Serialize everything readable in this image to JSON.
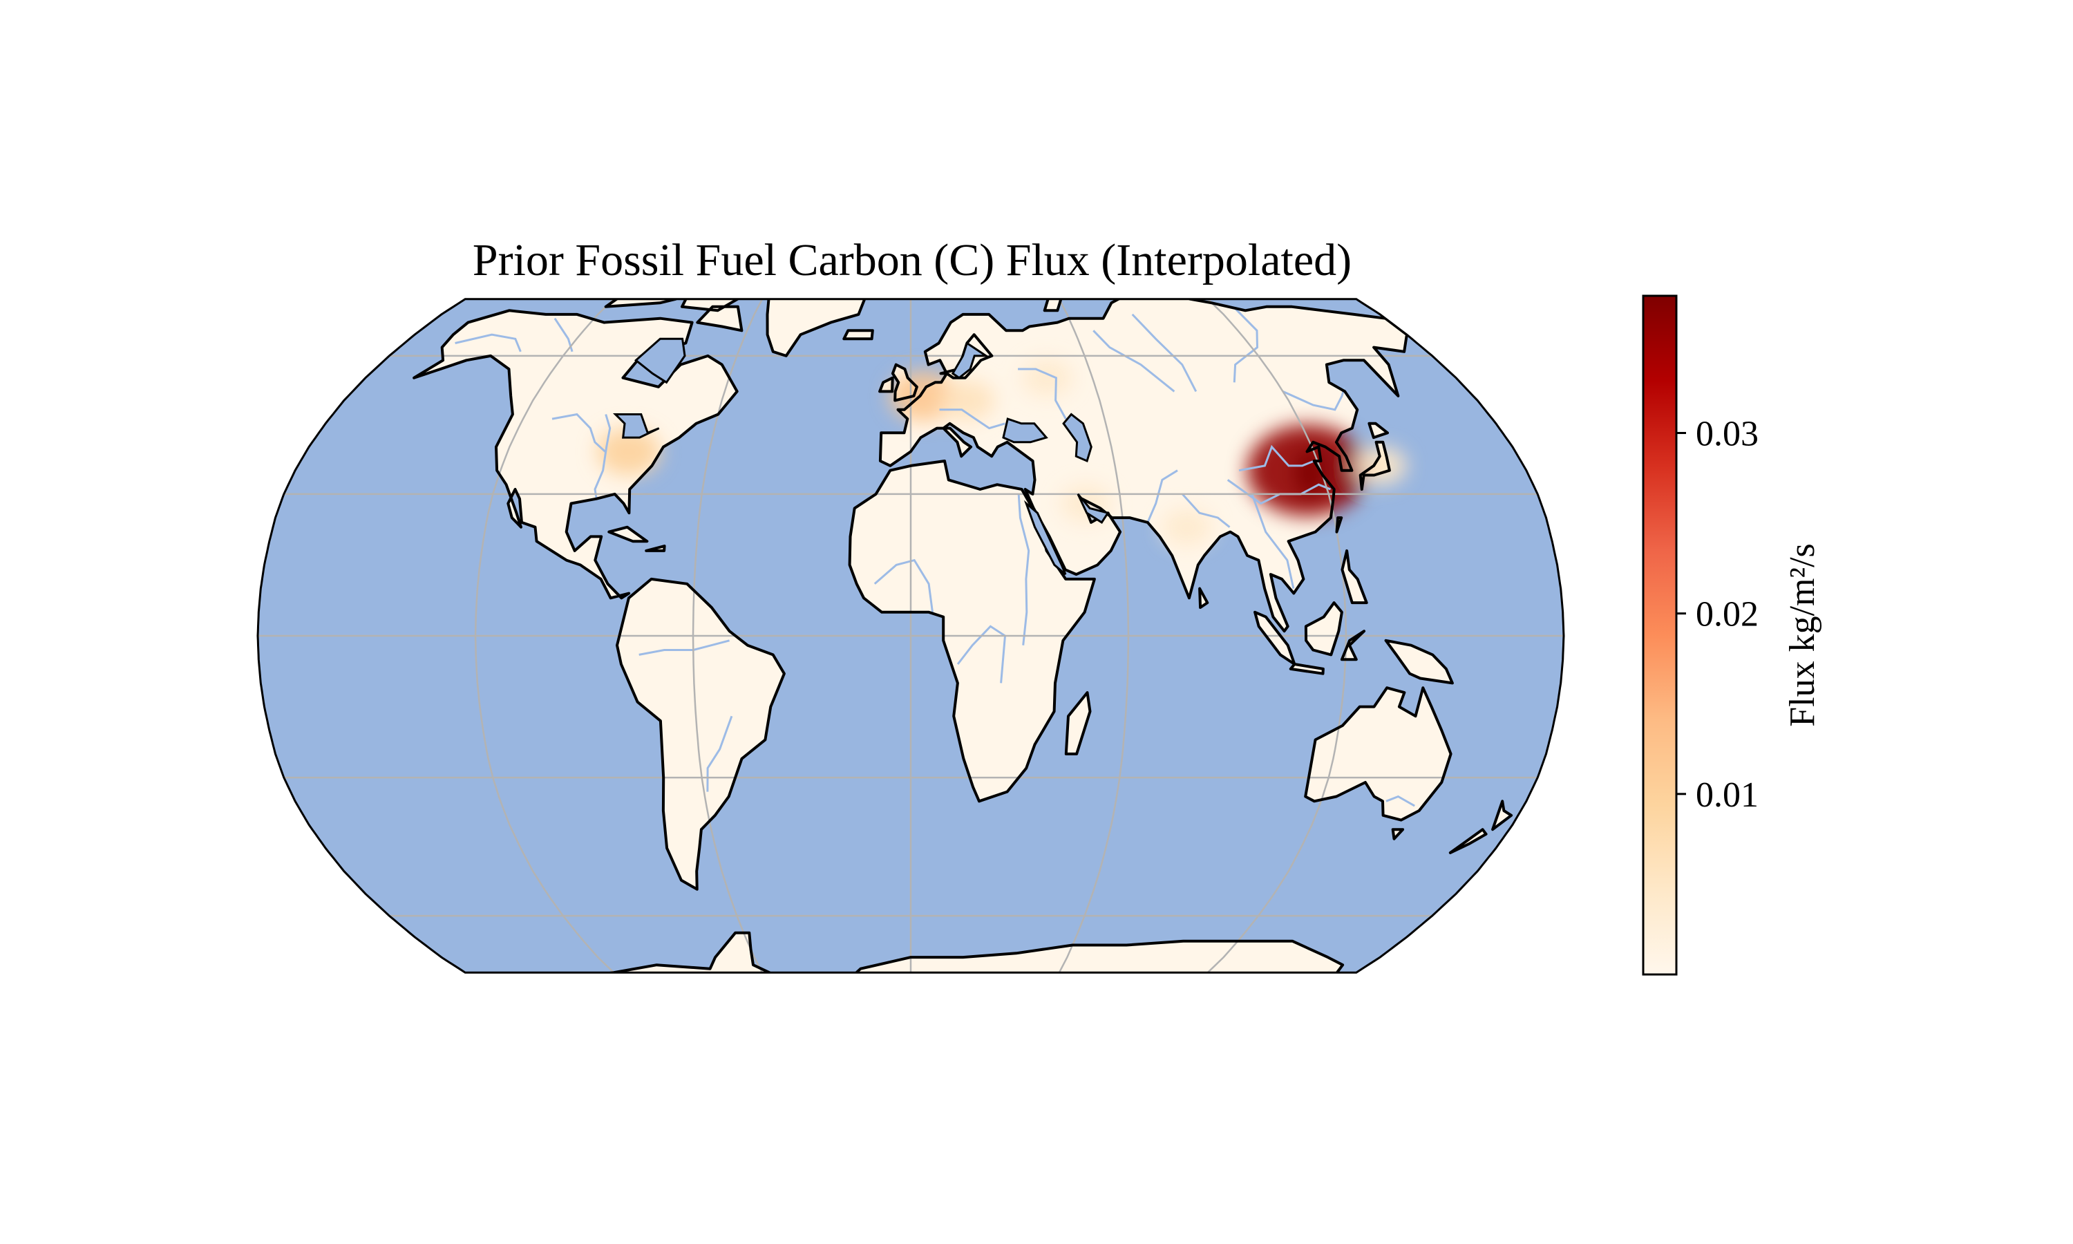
{
  "title": "Prior Fossil Fuel Carbon (C) Flux (Interpolated)",
  "colorbar": {
    "label": "Flux kg/m²/s",
    "ticks": [
      {
        "label": "0.01",
        "value": 0.01
      },
      {
        "label": "0.02",
        "value": 0.02
      },
      {
        "label": "0.03",
        "value": 0.03
      }
    ],
    "min": 0.0,
    "max": 0.0376,
    "colormap": "OrRd",
    "stops": [
      "#fff7ec",
      "#fee8c8",
      "#fdd49e",
      "#fdbb84",
      "#fc8d59",
      "#ef6548",
      "#d7301f",
      "#b30000",
      "#7f0000"
    ]
  },
  "colors": {
    "ocean": "#99b6e0",
    "land": "#fff6e9",
    "rivers": "#9dbbe6",
    "coastline": "#000000",
    "gridlines": "#b3b3b3"
  },
  "chart_data": {
    "type": "heatmap",
    "projection": "robinson",
    "extent": "global",
    "grid": true,
    "features": [
      "coastlines",
      "rivers",
      "ocean"
    ],
    "hotspots": [
      {
        "region": "Eastern China",
        "lon": 116,
        "lat": 35,
        "value": 0.036
      },
      {
        "region": "Western Europe",
        "lon": 4,
        "lat": 51,
        "value": 0.012
      },
      {
        "region": "Eastern United States",
        "lon": -84,
        "lat": 39,
        "value": 0.01
      },
      {
        "region": "Central Europe",
        "lon": 18,
        "lat": 50,
        "value": 0.006
      },
      {
        "region": "India",
        "lon": 78,
        "lat": 23,
        "value": 0.004
      },
      {
        "region": "Japan",
        "lon": 138,
        "lat": 36,
        "value": 0.005
      },
      {
        "region": "Middle East",
        "lon": 50,
        "lat": 28,
        "value": 0.004
      },
      {
        "region": "Western Russia",
        "lon": 45,
        "lat": 55,
        "value": 0.004
      }
    ]
  }
}
